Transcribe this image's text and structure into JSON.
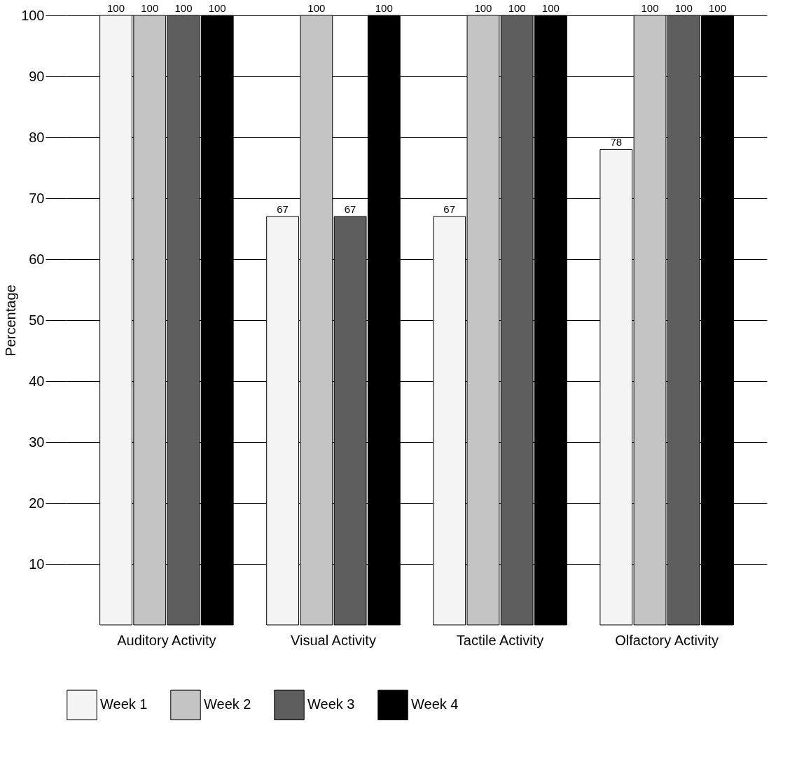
{
  "chart_data": {
    "type": "bar",
    "ylabel": "Percentage",
    "categories": [
      "Auditory Activity",
      "Visual Activity",
      "Tactile Activity",
      "Olfactory Activity"
    ],
    "series": [
      {
        "name": "Week 1",
        "color": "#f4f4f4",
        "values": [
          100,
          67,
          67,
          78
        ]
      },
      {
        "name": "Week 2",
        "color": "#c4c4c4",
        "values": [
          100,
          100,
          100,
          100
        ]
      },
      {
        "name": "Week 3",
        "color": "#5e5e5e",
        "values": [
          100,
          67,
          100,
          100
        ]
      },
      {
        "name": "Week 4",
        "color": "#000000",
        "values": [
          100,
          100,
          100,
          100
        ]
      }
    ],
    "ylim": [
      0,
      100
    ],
    "yticks": [
      10,
      20,
      30,
      40,
      50,
      60,
      70,
      80,
      90,
      100
    ],
    "grid": "y",
    "legend": "bottom",
    "data_labels": true
  }
}
